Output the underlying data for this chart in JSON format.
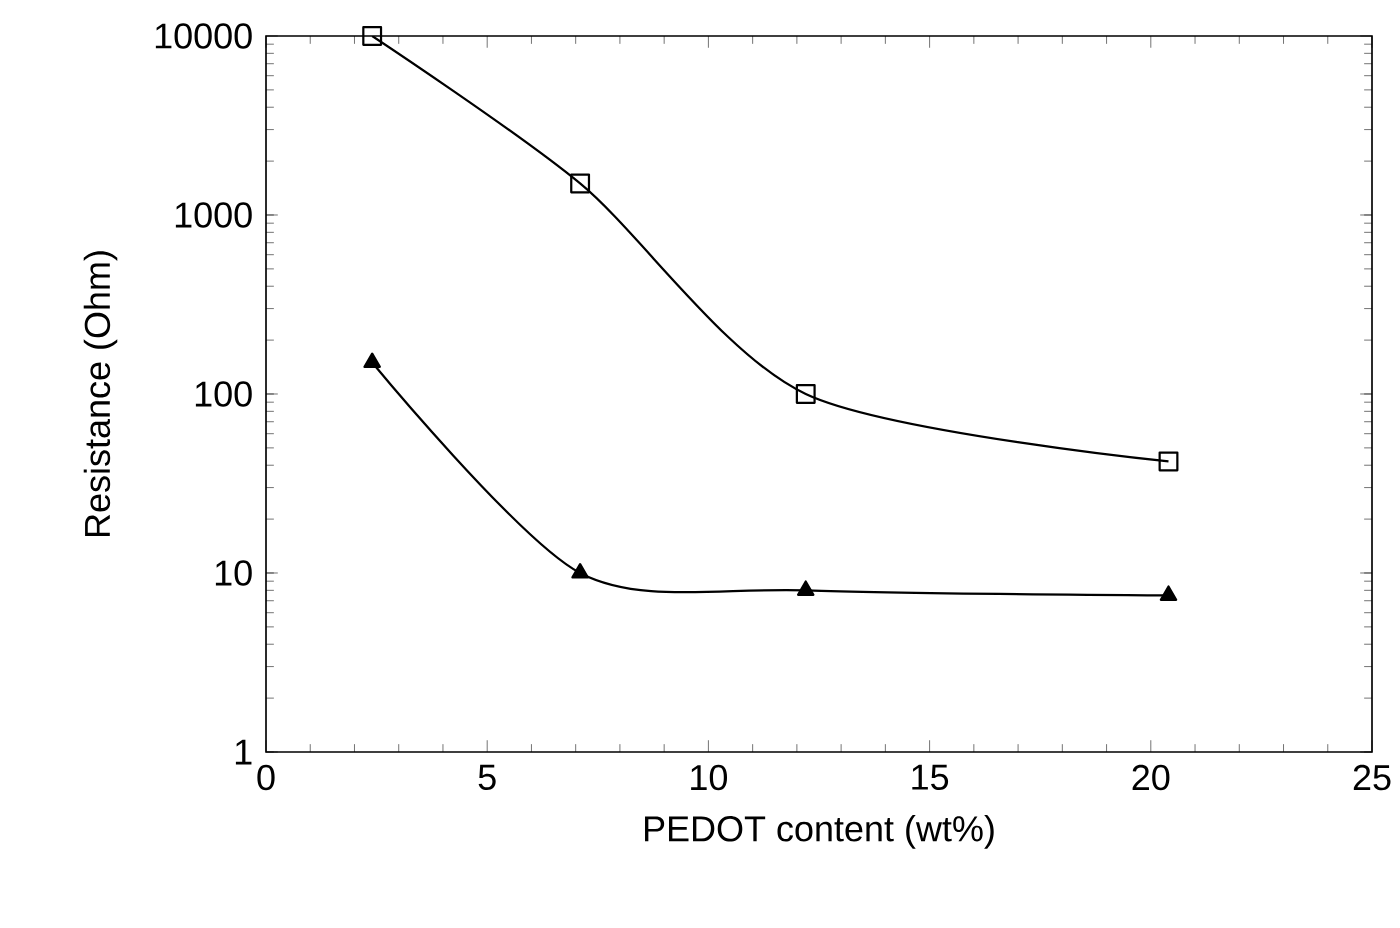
{
  "chart_data": {
    "type": "line",
    "xlabel": "PEDOT content (wt%)",
    "ylabel": "Resistance (Ohm)",
    "log": "y",
    "xlim": [
      0,
      25
    ],
    "xticks": [
      0,
      5,
      10,
      15,
      20,
      25
    ],
    "ylim": [
      1,
      10000
    ],
    "yticks": [
      1,
      10,
      100,
      1000,
      10000
    ],
    "series": [
      {
        "color": "#000000",
        "marker": "square",
        "x": [
          2.4,
          7.1,
          12.2,
          20.4
        ],
        "values": [
          10000,
          1500,
          100,
          42
        ]
      },
      {
        "color": "#000000",
        "marker": "triangle",
        "x": [
          2.4,
          7.1,
          12.2,
          20.4
        ],
        "values": [
          150,
          10,
          8,
          7.5
        ]
      }
    ]
  }
}
